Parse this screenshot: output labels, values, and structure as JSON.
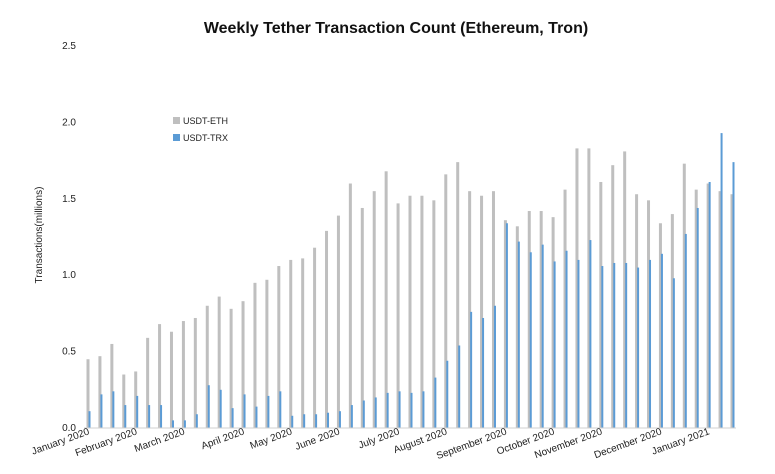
{
  "chart_data": {
    "type": "bar",
    "title": "Weekly Tether Transaction Count (Ethereum, Tron)",
    "xlabel": "",
    "ylabel": "Transactions(millions)",
    "ylim": [
      0,
      2.5
    ],
    "yticks": [
      "0.0",
      "0.5",
      "1.0",
      "1.5",
      "2.0",
      "2.5"
    ],
    "grid": false,
    "legend_position": "upper-left",
    "x_tick_labels": [
      "January 2020",
      "February 2020",
      "March 2020",
      "April 2020",
      "May 2020",
      "June 2020",
      "July 2020",
      "August 2020",
      "September 2020",
      "October 2020",
      "November 2020",
      "December 2020",
      "January 2021"
    ],
    "x_tick_label_weeks": [
      0,
      4,
      8,
      13,
      17,
      21,
      26,
      30,
      35,
      39,
      43,
      48,
      52
    ],
    "series": [
      {
        "name": "USDT-ETH",
        "color": "#bfbfbf",
        "values": [
          0.45,
          0.47,
          0.55,
          0.35,
          0.37,
          0.59,
          0.68,
          0.63,
          0.7,
          0.72,
          0.8,
          0.86,
          0.78,
          0.83,
          0.95,
          0.97,
          1.06,
          1.1,
          1.11,
          1.18,
          1.29,
          1.39,
          1.6,
          1.44,
          1.55,
          1.68,
          1.47,
          1.52,
          1.52,
          1.49,
          1.66,
          1.74,
          1.55,
          1.52,
          1.55,
          1.36,
          1.32,
          1.42,
          1.42,
          1.38,
          1.56,
          1.83,
          1.83,
          1.61,
          1.72,
          1.81,
          1.53,
          1.49,
          1.34,
          1.4,
          1.73,
          1.56,
          1.6,
          1.55,
          1.53
        ]
      },
      {
        "name": "USDT-TRX",
        "color": "#5b9bd5",
        "values": [
          0.11,
          0.22,
          0.24,
          0.15,
          0.21,
          0.15,
          0.15,
          0.05,
          0.05,
          0.09,
          0.28,
          0.25,
          0.13,
          0.22,
          0.14,
          0.21,
          0.24,
          0.08,
          0.09,
          0.09,
          0.1,
          0.11,
          0.15,
          0.18,
          0.2,
          0.23,
          0.24,
          0.23,
          0.24,
          0.33,
          0.44,
          0.54,
          0.76,
          0.72,
          0.8,
          1.34,
          1.22,
          1.15,
          1.2,
          1.09,
          1.16,
          1.1,
          1.23,
          1.06,
          1.08,
          1.08,
          1.05,
          1.1,
          1.14,
          0.98,
          1.27,
          1.44,
          1.61,
          1.93,
          1.74
        ]
      }
    ]
  }
}
